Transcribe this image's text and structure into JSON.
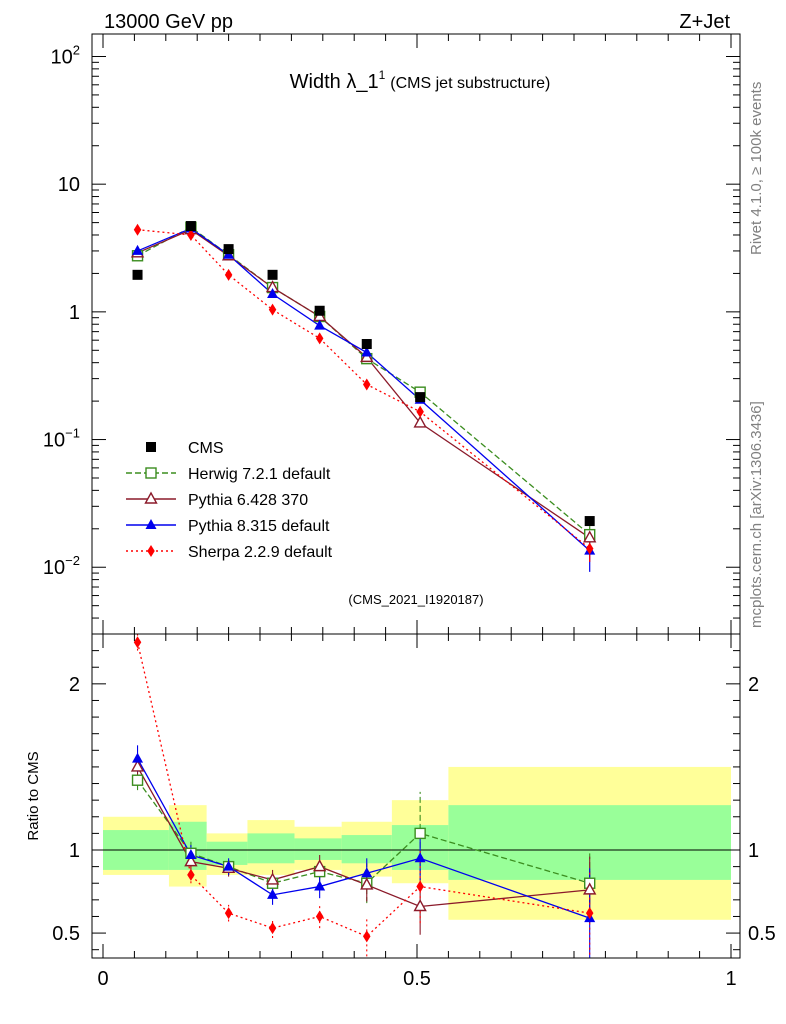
{
  "header": {
    "left": "13000 GeV pp",
    "right": "Z+Jet",
    "side_top": "Rivet 4.1.0, ≥ 100k events",
    "side_bottom": "mcplots.cern.ch [arXiv:1306.3436]"
  },
  "chart_data": [
    {
      "type": "line",
      "title_main": "Width λ_1",
      "title_sup": "1",
      "title_sub": "(CMS jet substructure)",
      "analysis_label": "(CMS_2021_I1920187)",
      "yscale": "log",
      "xlim": [
        0,
        1
      ],
      "ylim": [
        0.003,
        150
      ],
      "y_ticks": [
        {
          "v": 0.01,
          "b": "10",
          "e": "−2"
        },
        {
          "v": 0.1,
          "b": "10",
          "e": "−1"
        },
        {
          "v": 1,
          "b": "1",
          "e": ""
        },
        {
          "v": 10,
          "b": "10",
          "e": ""
        },
        {
          "v": 100,
          "b": "10",
          "e": "2"
        }
      ],
      "legend_position": "bottom-left",
      "x": [
        0.055,
        0.14,
        0.2,
        0.27,
        0.345,
        0.42,
        0.505,
        0.775
      ],
      "series": [
        {
          "name": "CMS",
          "key": "cms",
          "values": [
            1.95,
            4.7,
            3.1,
            1.95,
            1.02,
            0.56,
            0.215,
            0.023
          ]
        },
        {
          "name": "Herwig 7.2.1 default",
          "key": "herwig",
          "values": [
            2.75,
            4.6,
            2.8,
            1.55,
            0.92,
            0.43,
            0.235,
            0.018
          ]
        },
        {
          "name": "Pythia 6.428 370",
          "key": "py6",
          "values": [
            2.9,
            4.4,
            2.75,
            1.55,
            0.92,
            0.44,
            0.135,
            0.017
          ]
        },
        {
          "name": "Pythia 8.315 default",
          "key": "py8",
          "values": [
            3.0,
            4.5,
            2.8,
            1.38,
            0.78,
            0.48,
            0.205,
            0.0135
          ]
        },
        {
          "name": "Sherpa 2.2.9 default",
          "key": "sherpa",
          "values": [
            4.4,
            4.0,
            1.95,
            1.04,
            0.62,
            0.27,
            0.165,
            0.014
          ]
        }
      ]
    },
    {
      "type": "line",
      "ylabel": "Ratio to CMS",
      "xlim": [
        0,
        1
      ],
      "ylim": [
        0.35,
        2.3
      ],
      "x_ticks": [
        "0",
        "0.5",
        "1"
      ],
      "y_ticks": [
        "0.5",
        "1",
        "2"
      ],
      "bands": [
        {
          "x0": 0.0,
          "x1": 0.105,
          "y1_lo": 0.88,
          "y1_hi": 1.12,
          "y2_lo": 0.85,
          "y2_hi": 1.2
        },
        {
          "x0": 0.105,
          "x1": 0.165,
          "y1_lo": 0.88,
          "y1_hi": 1.17,
          "y2_lo": 0.78,
          "y2_hi": 1.27
        },
        {
          "x0": 0.165,
          "x1": 0.23,
          "y1_lo": 0.91,
          "y1_hi": 1.05,
          "y2_lo": 0.85,
          "y2_hi": 1.1
        },
        {
          "x0": 0.23,
          "x1": 0.305,
          "y1_lo": 0.92,
          "y1_hi": 1.1,
          "y2_lo": 0.85,
          "y2_hi": 1.18
        },
        {
          "x0": 0.305,
          "x1": 0.38,
          "y1_lo": 0.94,
          "y1_hi": 1.07,
          "y2_lo": 0.88,
          "y2_hi": 1.14
        },
        {
          "x0": 0.38,
          "x1": 0.46,
          "y1_lo": 0.92,
          "y1_hi": 1.09,
          "y2_lo": 0.84,
          "y2_hi": 1.17
        },
        {
          "x0": 0.46,
          "x1": 0.55,
          "y1_lo": 0.88,
          "y1_hi": 1.15,
          "y2_lo": 0.8,
          "y2_hi": 1.3
        },
        {
          "x0": 0.55,
          "x1": 1.0,
          "y1_lo": 0.82,
          "y1_hi": 1.27,
          "y2_lo": 0.58,
          "y2_hi": 1.5
        }
      ],
      "series": [
        {
          "key": "herwig",
          "values": [
            1.42,
            0.98,
            0.9,
            0.8,
            0.87,
            0.8,
            1.1,
            0.8
          ],
          "err": [
            0.06,
            0.07,
            0.05,
            0.06,
            0.06,
            0.12,
            0.25,
            0.18
          ]
        },
        {
          "key": "py6",
          "values": [
            1.5,
            0.93,
            0.89,
            0.82,
            0.9,
            0.79,
            0.66,
            0.76
          ],
          "err": [
            0.07,
            0.06,
            0.05,
            0.06,
            0.07,
            0.1,
            0.17,
            0.2
          ]
        },
        {
          "key": "py8",
          "values": [
            1.55,
            0.97,
            0.9,
            0.73,
            0.78,
            0.86,
            0.95,
            0.59
          ],
          "err": [
            0.08,
            0.06,
            0.05,
            0.06,
            0.07,
            0.09,
            0.13,
            0.3
          ]
        },
        {
          "key": "sherpa",
          "values": [
            2.25,
            0.85,
            0.62,
            0.53,
            0.6,
            0.48,
            0.78,
            0.62
          ],
          "err": [
            0.05,
            0.05,
            0.05,
            0.06,
            0.07,
            0.12,
            0.22,
            0.25
          ]
        }
      ]
    }
  ],
  "styles": {
    "cms": {
      "color": "#000000",
      "marker": "square-filled",
      "dash": ""
    },
    "herwig": {
      "color": "#3b8d1f",
      "marker": "square-open",
      "dash": "6,3"
    },
    "py6": {
      "color": "#8b1a2a",
      "marker": "triangle-open",
      "dash": ""
    },
    "py8": {
      "color": "#0000ee",
      "marker": "triangle-filled",
      "dash": ""
    },
    "sherpa": {
      "color": "#ff0000",
      "marker": "diamond-filled",
      "dash": "2,3"
    },
    "band_inner": "#99ff99",
    "band_outer": "#ffff99"
  }
}
